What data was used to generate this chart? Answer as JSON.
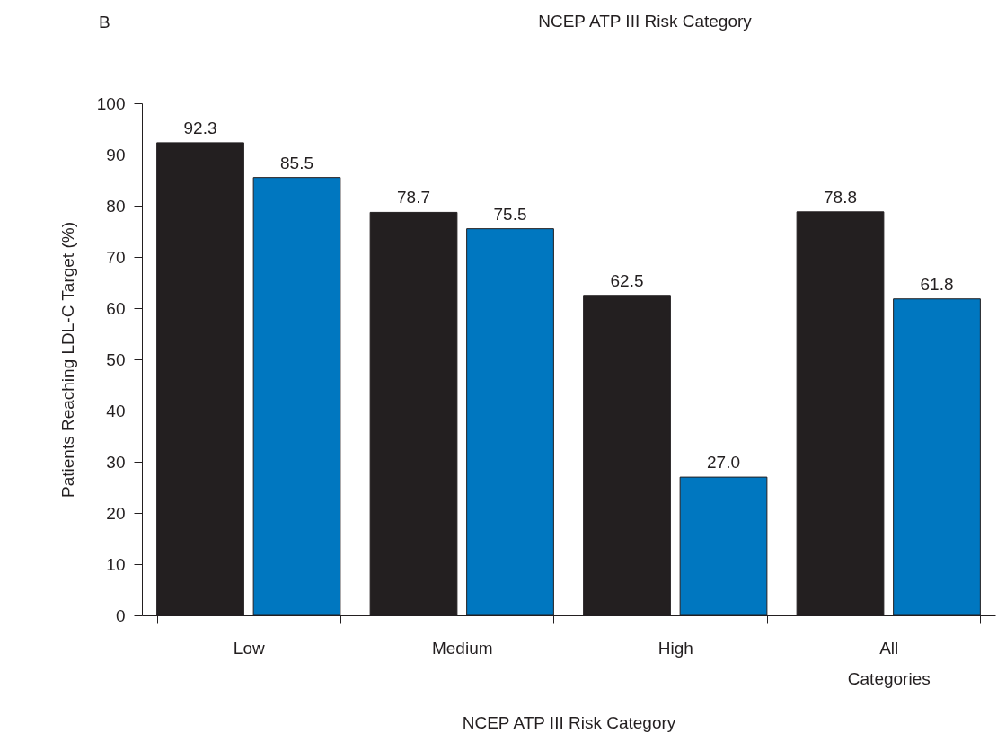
{
  "chart_data": {
    "type": "bar",
    "title": "NCEP ATP III Risk Category",
    "xlabel": "NCEP ATP III Risk Category",
    "ylabel": "Patients Reaching LDL-C Target (%)",
    "annotations": [
      "B"
    ],
    "categories": [
      "Low",
      "Medium",
      "High",
      "All Categories"
    ],
    "series": [
      {
        "color": "#231f20",
        "values": [
          92.3,
          78.7,
          62.5,
          78.8
        ],
        "value_labels": [
          "92.3",
          "78.7",
          "62.5",
          "78.8"
        ]
      },
      {
        "color": "#0077c0",
        "values": [
          85.5,
          75.5,
          27.0,
          61.8
        ],
        "value_labels": [
          "85.5",
          "75.5",
          "27.0",
          "61.8"
        ]
      }
    ],
    "ylim": [
      0,
      100
    ],
    "yticks": [
      0,
      10,
      20,
      30,
      40,
      50,
      60,
      70,
      80,
      90,
      100
    ],
    "grid": false,
    "legend": false
  }
}
